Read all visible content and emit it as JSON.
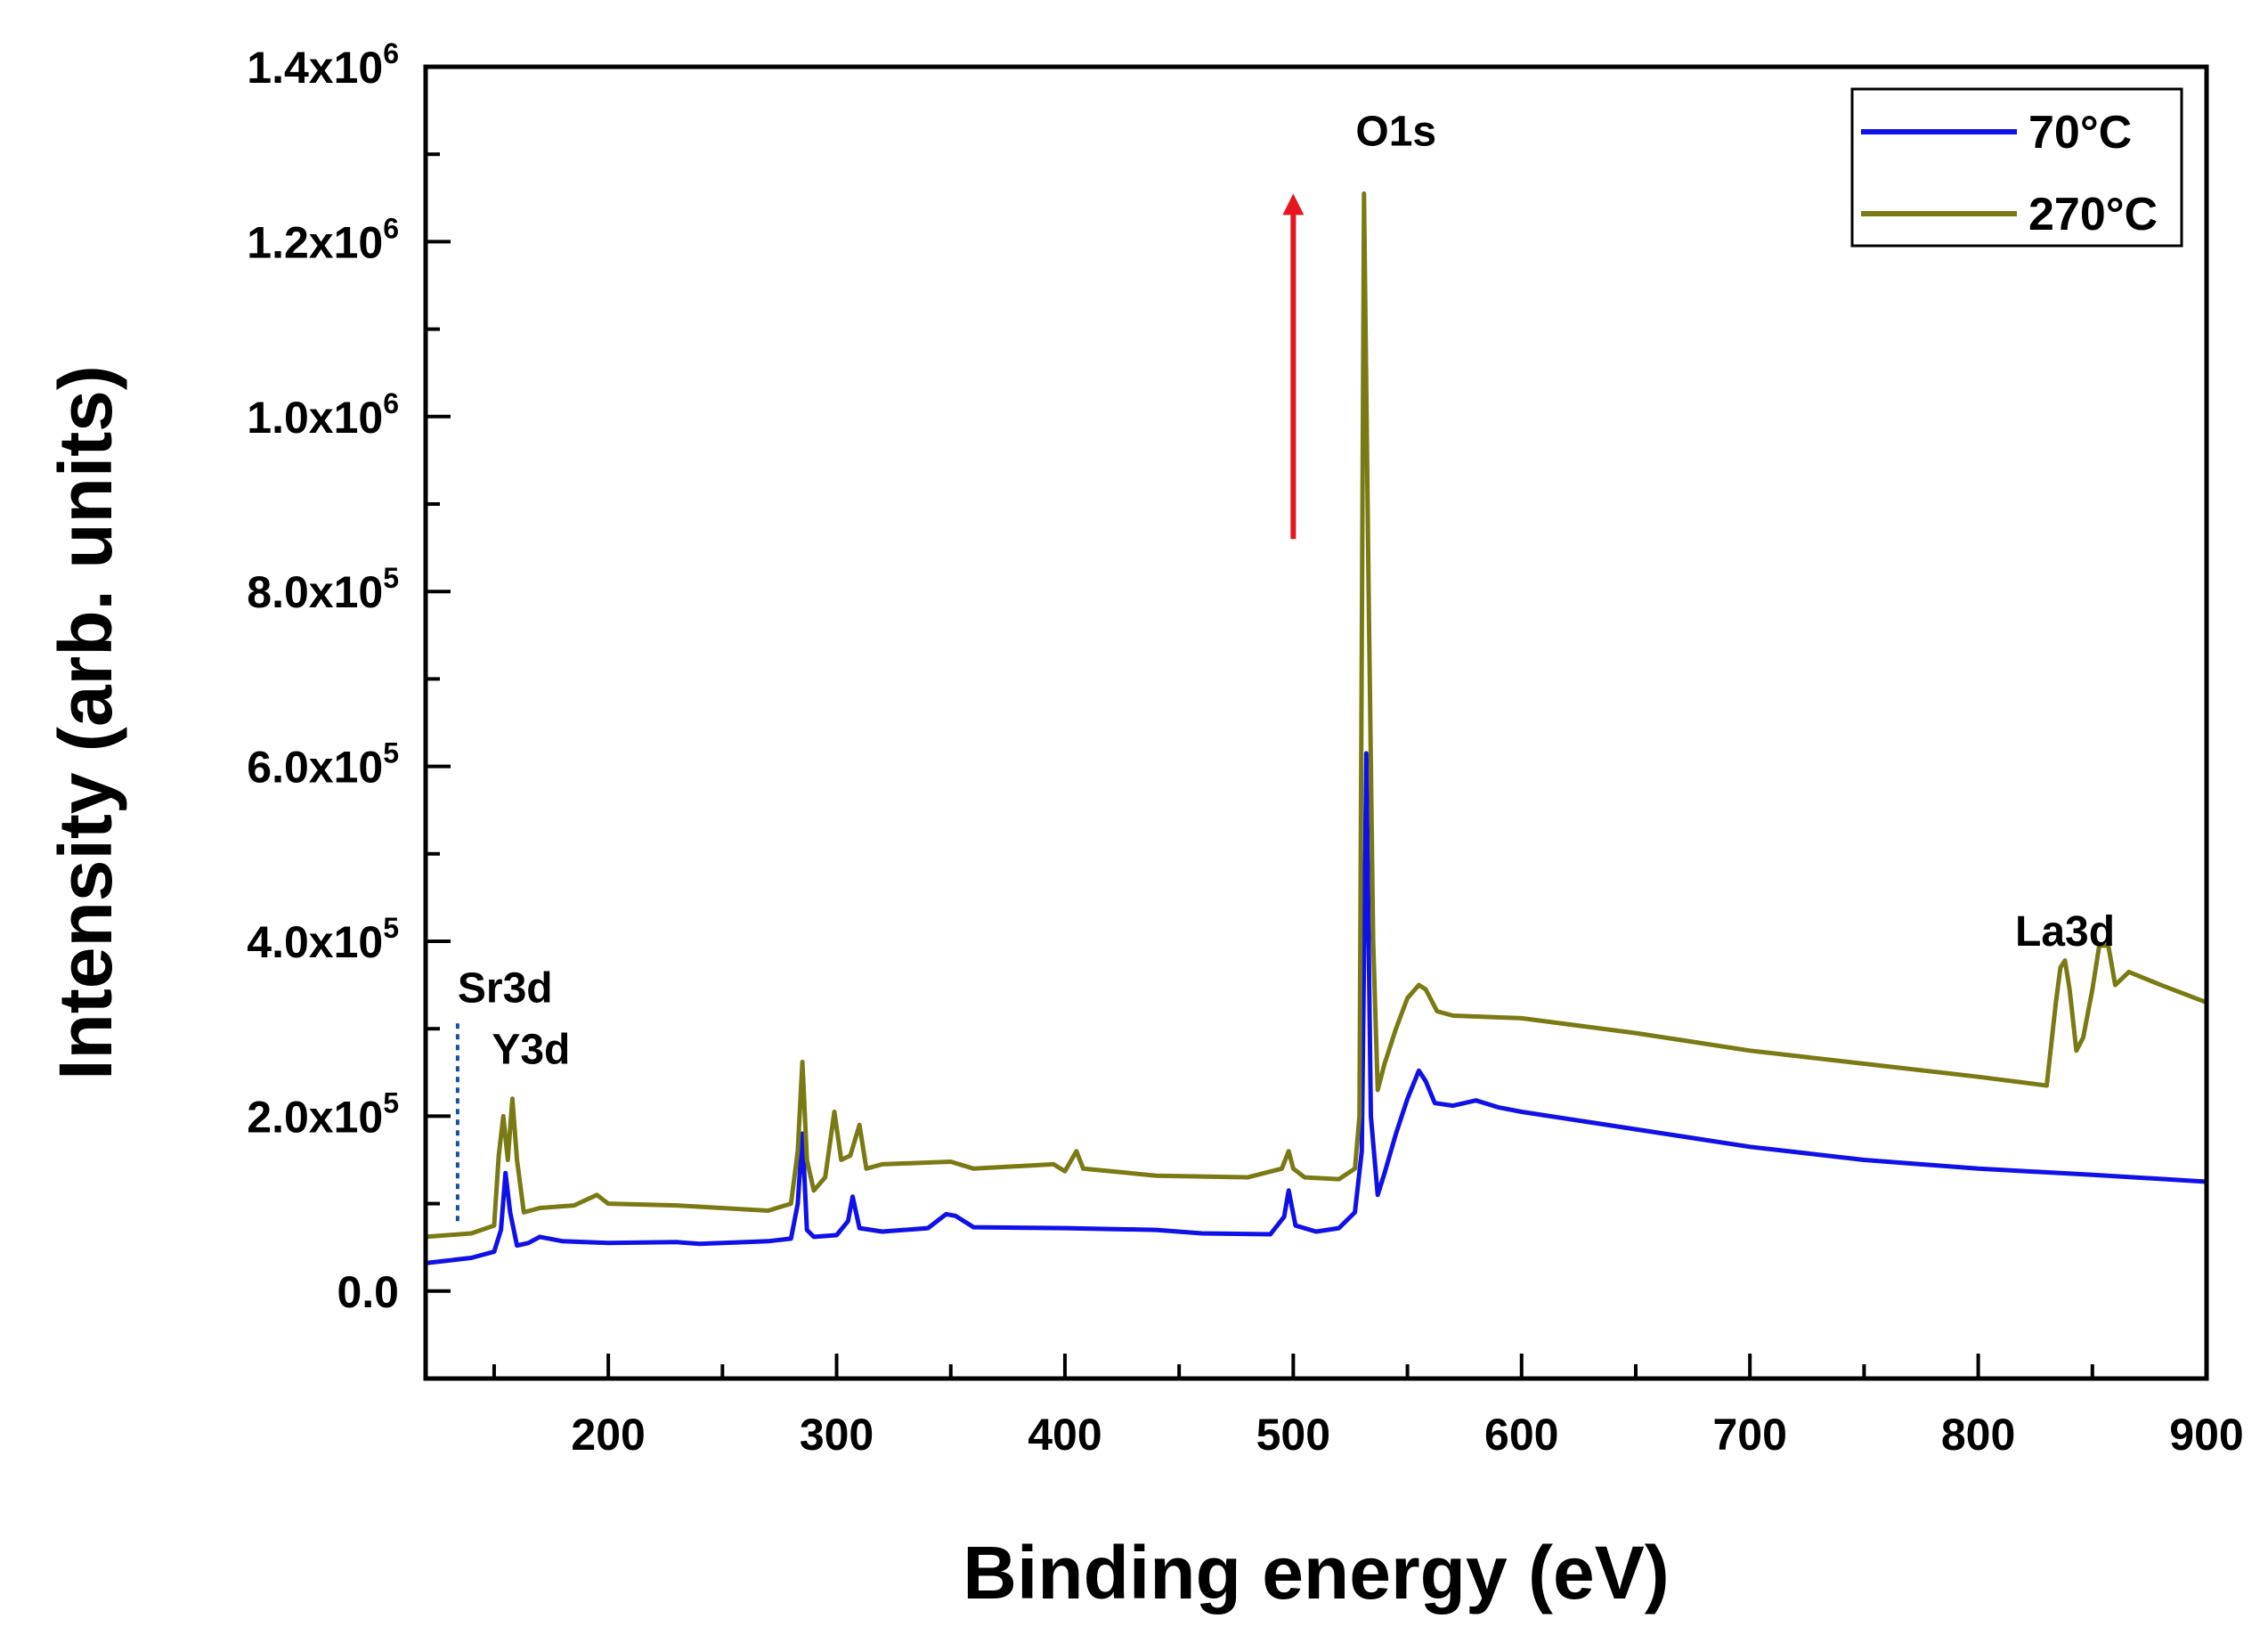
{
  "chart_data": {
    "type": "line",
    "title": "",
    "xlabel": "Binding energy (eV)",
    "ylabel": "Intensity (arb. units)",
    "xlim": [
      120,
      900
    ],
    "ylim": [
      -100000,
      1400000
    ],
    "x_ticks": [
      200,
      300,
      400,
      500,
      600,
      700,
      800,
      900
    ],
    "x_tick_labels": [
      "200",
      "300",
      "400",
      "500",
      "600",
      "700",
      "800",
      "900"
    ],
    "y_ticks": [
      0,
      200000,
      400000,
      600000,
      800000,
      1000000,
      1200000,
      1400000
    ],
    "y_tick_labels": [
      {
        "mantissa": "0.0",
        "exponent": ""
      },
      {
        "mantissa": "2.0x10",
        "exponent": "5"
      },
      {
        "mantissa": "4.0x10",
        "exponent": "5"
      },
      {
        "mantissa": "6.0x10",
        "exponent": "5"
      },
      {
        "mantissa": "8.0x10",
        "exponent": "5"
      },
      {
        "mantissa": "1.0x10",
        "exponent": "6"
      },
      {
        "mantissa": "1.2x10",
        "exponent": "6"
      },
      {
        "mantissa": "1.4x10",
        "exponent": "6"
      }
    ],
    "legend": {
      "position": "top-right",
      "entries": [
        "70°C",
        "270°C"
      ]
    },
    "series": [
      {
        "name": "70°C",
        "color": "#1010e8",
        "points": [
          [
            120,
            32000
          ],
          [
            140,
            38000
          ],
          [
            150,
            45000
          ],
          [
            153,
            70000
          ],
          [
            155,
            135000
          ],
          [
            157,
            90000
          ],
          [
            160,
            52000
          ],
          [
            165,
            55000
          ],
          [
            170,
            62000
          ],
          [
            180,
            57000
          ],
          [
            200,
            55000
          ],
          [
            230,
            56000
          ],
          [
            240,
            54000
          ],
          [
            270,
            57000
          ],
          [
            280,
            60000
          ],
          [
            283,
            100000
          ],
          [
            285,
            180000
          ],
          [
            287,
            70000
          ],
          [
            290,
            62000
          ],
          [
            300,
            64000
          ],
          [
            305,
            80000
          ],
          [
            307,
            108000
          ],
          [
            310,
            72000
          ],
          [
            320,
            68000
          ],
          [
            340,
            72000
          ],
          [
            348,
            88000
          ],
          [
            352,
            86000
          ],
          [
            360,
            73000
          ],
          [
            400,
            72000
          ],
          [
            440,
            70000
          ],
          [
            460,
            66000
          ],
          [
            490,
            65000
          ],
          [
            496,
            85000
          ],
          [
            498,
            115000
          ],
          [
            501,
            75000
          ],
          [
            510,
            68000
          ],
          [
            520,
            72000
          ],
          [
            527,
            90000
          ],
          [
            530,
            160000
          ],
          [
            532,
            615000
          ],
          [
            534,
            200000
          ],
          [
            537,
            110000
          ],
          [
            540,
            135000
          ],
          [
            545,
            180000
          ],
          [
            550,
            220000
          ],
          [
            555,
            252000
          ],
          [
            558,
            240000
          ],
          [
            562,
            215000
          ],
          [
            570,
            212000
          ],
          [
            580,
            218000
          ],
          [
            590,
            210000
          ],
          [
            600,
            205000
          ],
          [
            650,
            185000
          ],
          [
            700,
            165000
          ],
          [
            750,
            150000
          ],
          [
            800,
            140000
          ],
          [
            850,
            133000
          ],
          [
            900,
            125000
          ]
        ]
      },
      {
        "name": "270°C",
        "color": "#7a7a14",
        "points": [
          [
            120,
            62000
          ],
          [
            140,
            66000
          ],
          [
            150,
            75000
          ],
          [
            152,
            155000
          ],
          [
            154,
            200000
          ],
          [
            156,
            150000
          ],
          [
            158,
            220000
          ],
          [
            160,
            150000
          ],
          [
            163,
            90000
          ],
          [
            170,
            95000
          ],
          [
            185,
            98000
          ],
          [
            195,
            110000
          ],
          [
            200,
            100000
          ],
          [
            230,
            98000
          ],
          [
            270,
            92000
          ],
          [
            280,
            100000
          ],
          [
            283,
            160000
          ],
          [
            285,
            262000
          ],
          [
            287,
            150000
          ],
          [
            290,
            115000
          ],
          [
            295,
            130000
          ],
          [
            299,
            205000
          ],
          [
            302,
            150000
          ],
          [
            306,
            155000
          ],
          [
            310,
            190000
          ],
          [
            313,
            140000
          ],
          [
            320,
            145000
          ],
          [
            350,
            148000
          ],
          [
            360,
            140000
          ],
          [
            395,
            145000
          ],
          [
            400,
            137000
          ],
          [
            405,
            160000
          ],
          [
            408,
            140000
          ],
          [
            440,
            132000
          ],
          [
            480,
            130000
          ],
          [
            495,
            140000
          ],
          [
            498,
            160000
          ],
          [
            500,
            140000
          ],
          [
            505,
            130000
          ],
          [
            520,
            128000
          ],
          [
            527,
            140000
          ],
          [
            529,
            200000
          ],
          [
            531,
            1255000
          ],
          [
            533,
            800000
          ],
          [
            535,
            400000
          ],
          [
            537,
            230000
          ],
          [
            540,
            260000
          ],
          [
            545,
            300000
          ],
          [
            550,
            335000
          ],
          [
            555,
            350000
          ],
          [
            558,
            345000
          ],
          [
            563,
            320000
          ],
          [
            570,
            315000
          ],
          [
            600,
            312000
          ],
          [
            650,
            295000
          ],
          [
            700,
            275000
          ],
          [
            750,
            260000
          ],
          [
            800,
            245000
          ],
          [
            830,
            235000
          ],
          [
            834,
            330000
          ],
          [
            836,
            370000
          ],
          [
            838,
            378000
          ],
          [
            840,
            345000
          ],
          [
            843,
            275000
          ],
          [
            846,
            290000
          ],
          [
            850,
            345000
          ],
          [
            853,
            395000
          ],
          [
            857,
            395000
          ],
          [
            860,
            350000
          ],
          [
            866,
            365000
          ],
          [
            880,
            350000
          ],
          [
            900,
            330000
          ]
        ]
      }
    ],
    "annotations": [
      {
        "text": "O1s",
        "x": 545,
        "y": 1310000
      },
      {
        "text": "La3d",
        "x": 838,
        "y": 395000
      },
      {
        "text": "Sr3d",
        "x": 134,
        "y": 330000
      },
      {
        "text": "Y3d",
        "x": 149,
        "y": 260000
      }
    ],
    "arrow": {
      "x": 500,
      "y_start": 860000,
      "y_end": 1255000,
      "color": "#e8141e"
    },
    "dotted_line": {
      "x": 134,
      "y_start": 80000,
      "y_end": 310000,
      "color": "#1a4fa0"
    }
  }
}
